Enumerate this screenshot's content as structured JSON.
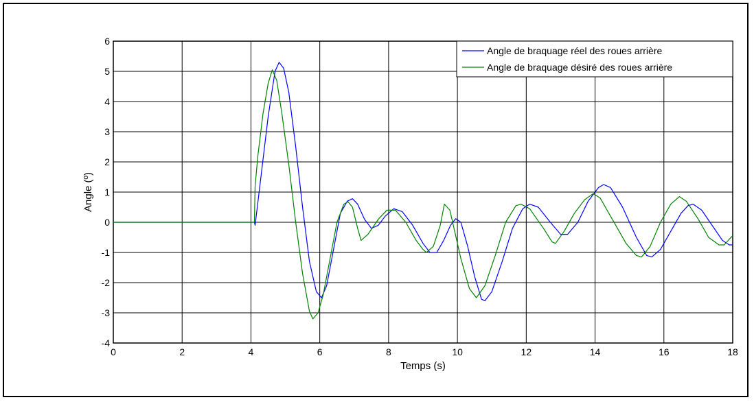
{
  "chart_data": {
    "type": "line",
    "title": "",
    "xlabel": "Temps (s)",
    "ylabel": "Angle (º)",
    "xlim": [
      0,
      18
    ],
    "ylim": [
      -4,
      6
    ],
    "xticks": [
      0,
      2,
      4,
      6,
      8,
      10,
      12,
      14,
      16,
      18
    ],
    "yticks": [
      -4,
      -3,
      -2,
      -1,
      0,
      1,
      2,
      3,
      4,
      5,
      6
    ],
    "grid": true,
    "legend_position": "top-right",
    "series": [
      {
        "name": "Angle de braquage réel des roues arrière",
        "color": "#0000ff",
        "points": [
          [
            0,
            0
          ],
          [
            4.1,
            0
          ],
          [
            4.12,
            -0.1
          ],
          [
            4.3,
            1.6
          ],
          [
            4.5,
            3.5
          ],
          [
            4.7,
            5.0
          ],
          [
            4.82,
            5.3
          ],
          [
            4.95,
            5.1
          ],
          [
            5.1,
            4.3
          ],
          [
            5.3,
            2.5
          ],
          [
            5.5,
            0.5
          ],
          [
            5.7,
            -1.3
          ],
          [
            5.9,
            -2.3
          ],
          [
            6.05,
            -2.5
          ],
          [
            6.2,
            -2.1
          ],
          [
            6.4,
            -0.9
          ],
          [
            6.6,
            0.3
          ],
          [
            6.8,
            0.7
          ],
          [
            6.95,
            0.78
          ],
          [
            7.1,
            0.6
          ],
          [
            7.3,
            0.1
          ],
          [
            7.5,
            -0.2
          ],
          [
            7.7,
            -0.1
          ],
          [
            7.9,
            0.2
          ],
          [
            8.15,
            0.45
          ],
          [
            8.4,
            0.35
          ],
          [
            8.7,
            -0.1
          ],
          [
            9.0,
            -0.7
          ],
          [
            9.2,
            -1.0
          ],
          [
            9.4,
            -1.0
          ],
          [
            9.6,
            -0.6
          ],
          [
            9.8,
            -0.1
          ],
          [
            9.95,
            0.12
          ],
          [
            10.1,
            0.0
          ],
          [
            10.3,
            -0.8
          ],
          [
            10.5,
            -1.8
          ],
          [
            10.7,
            -2.55
          ],
          [
            10.8,
            -2.6
          ],
          [
            11.0,
            -2.3
          ],
          [
            11.3,
            -1.3
          ],
          [
            11.6,
            -0.2
          ],
          [
            11.9,
            0.45
          ],
          [
            12.1,
            0.6
          ],
          [
            12.35,
            0.5
          ],
          [
            12.7,
            0.0
          ],
          [
            13.0,
            -0.4
          ],
          [
            13.2,
            -0.4
          ],
          [
            13.5,
            0.0
          ],
          [
            13.8,
            0.7
          ],
          [
            14.1,
            1.15
          ],
          [
            14.25,
            1.25
          ],
          [
            14.45,
            1.15
          ],
          [
            14.8,
            0.5
          ],
          [
            15.2,
            -0.5
          ],
          [
            15.5,
            -1.1
          ],
          [
            15.65,
            -1.15
          ],
          [
            15.9,
            -0.9
          ],
          [
            16.2,
            -0.3
          ],
          [
            16.5,
            0.3
          ],
          [
            16.7,
            0.55
          ],
          [
            16.85,
            0.6
          ],
          [
            17.1,
            0.4
          ],
          [
            17.4,
            -0.1
          ],
          [
            17.7,
            -0.6
          ],
          [
            17.9,
            -0.75
          ],
          [
            18.0,
            -0.75
          ]
        ]
      },
      {
        "name": "Angle de braquage désiré des roues arrière",
        "color": "#008000",
        "points": [
          [
            0,
            0
          ],
          [
            4.1,
            0
          ],
          [
            4.12,
            1.2
          ],
          [
            4.2,
            2.2
          ],
          [
            4.35,
            3.6
          ],
          [
            4.5,
            4.6
          ],
          [
            4.62,
            5.05
          ],
          [
            4.75,
            4.7
          ],
          [
            4.9,
            3.6
          ],
          [
            5.1,
            1.9
          ],
          [
            5.3,
            0.0
          ],
          [
            5.5,
            -1.7
          ],
          [
            5.7,
            -2.95
          ],
          [
            5.8,
            -3.2
          ],
          [
            5.95,
            -3.0
          ],
          [
            6.1,
            -2.4
          ],
          [
            6.3,
            -1.2
          ],
          [
            6.5,
            0.0
          ],
          [
            6.7,
            0.6
          ],
          [
            6.82,
            0.68
          ],
          [
            6.95,
            0.5
          ],
          [
            7.1,
            -0.2
          ],
          [
            7.2,
            -0.6
          ],
          [
            7.4,
            -0.4
          ],
          [
            7.7,
            0.1
          ],
          [
            7.95,
            0.4
          ],
          [
            8.2,
            0.4
          ],
          [
            8.5,
            0.0
          ],
          [
            8.8,
            -0.6
          ],
          [
            9.0,
            -0.9
          ],
          [
            9.1,
            -1.0
          ],
          [
            9.3,
            -0.8
          ],
          [
            9.5,
            -0.1
          ],
          [
            9.62,
            0.6
          ],
          [
            9.78,
            0.4
          ],
          [
            9.9,
            -0.2
          ],
          [
            10.1,
            -1.2
          ],
          [
            10.35,
            -2.2
          ],
          [
            10.55,
            -2.5
          ],
          [
            10.8,
            -2.1
          ],
          [
            11.1,
            -1.1
          ],
          [
            11.4,
            0.0
          ],
          [
            11.7,
            0.55
          ],
          [
            11.85,
            0.6
          ],
          [
            12.1,
            0.45
          ],
          [
            12.5,
            -0.2
          ],
          [
            12.75,
            -0.65
          ],
          [
            12.85,
            -0.7
          ],
          [
            13.1,
            -0.3
          ],
          [
            13.4,
            0.3
          ],
          [
            13.7,
            0.75
          ],
          [
            13.95,
            0.95
          ],
          [
            14.15,
            0.8
          ],
          [
            14.5,
            0.1
          ],
          [
            14.9,
            -0.7
          ],
          [
            15.2,
            -1.1
          ],
          [
            15.35,
            -1.15
          ],
          [
            15.6,
            -0.8
          ],
          [
            15.9,
            0.0
          ],
          [
            16.2,
            0.6
          ],
          [
            16.45,
            0.85
          ],
          [
            16.65,
            0.7
          ],
          [
            17.0,
            0.1
          ],
          [
            17.3,
            -0.5
          ],
          [
            17.6,
            -0.75
          ],
          [
            17.75,
            -0.75
          ],
          [
            17.95,
            -0.5
          ],
          [
            18.0,
            -0.45
          ]
        ]
      }
    ]
  }
}
